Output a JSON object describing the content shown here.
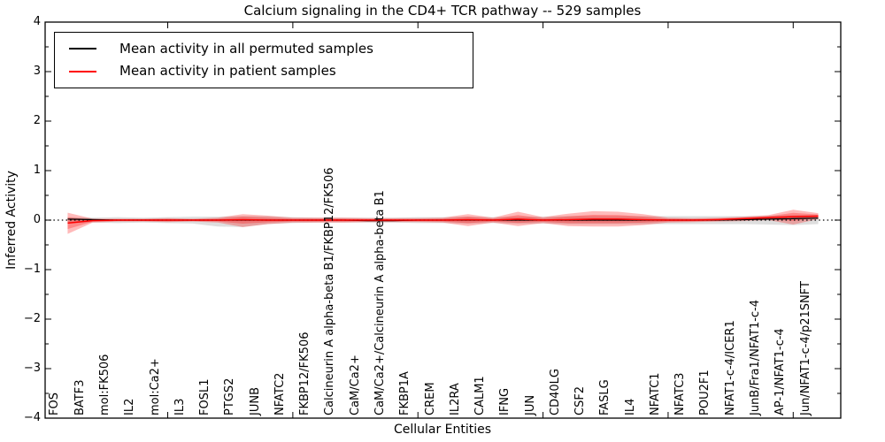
{
  "figure": {
    "title": "Calcium signaling in the CD4+ TCR pathway -- 529 samples",
    "xlabel": "Cellular Entities",
    "ylabel": "Inferred Activity"
  },
  "legend": {
    "position": "upper left",
    "entries": [
      {
        "label": "Mean activity in all permuted samples",
        "color": "#000000"
      },
      {
        "label": "Mean activity in patient samples",
        "color": "#ff0000"
      }
    ]
  },
  "colors": {
    "axis": "#000000",
    "permuted_line": "#000000",
    "patient_line": "#ff0000",
    "permuted_band": "rgba(0,0,0,0.13)",
    "patient_band": "rgba(255,0,0,0.27)",
    "zero_line": "#000000"
  },
  "chart_data": {
    "type": "line",
    "title": "Calcium signaling in the CD4+ TCR pathway -- 529 samples",
    "xlabel": "Cellular Entities",
    "ylabel": "Inferred Activity",
    "ylim": [
      -4,
      4
    ],
    "grid": false,
    "zero_line_style": "dotted",
    "legend_position": "upper left",
    "ytick_values": [
      4,
      3,
      2,
      1,
      0,
      -1,
      -2,
      -3,
      -4
    ],
    "ytick_labels": [
      "4",
      "3",
      "2",
      "1",
      "0",
      "−1",
      "−2",
      "−3",
      "−4"
    ],
    "xtick_values": [
      5,
      10,
      15,
      20,
      25,
      30
    ],
    "categories": [
      "FOS",
      "BATF3",
      "mol:FK506",
      "IL2",
      "mol:Ca2+",
      "IL3",
      "FOSL1",
      "PTGS2",
      "JUNB",
      "NFATC2",
      "FKBP12/FK506",
      "Calcineurin A alpha-beta B1/FKBP12/FK506",
      "CaM/Ca2+",
      "CaM/Ca2+/Calcineurin A alpha-beta B1",
      "FKBP1A",
      "CREM",
      "IL2RA",
      "CALM1",
      "IFNG",
      "JUN",
      "CD40LG",
      "CSF2",
      "FASLG",
      "IL4",
      "NFATC1",
      "NFATC3",
      "POU2F1",
      "NFAT1-c-4/ICER1",
      "JunB/Fra1/NFAT1-c-4",
      "AP-1/NFAT1-c-4",
      "Jun/NFAT1-c-4/p21SNFT"
    ],
    "series": [
      {
        "name": "Mean activity in all permuted samples",
        "color": "#000000",
        "values": [
          0.02,
          0.01,
          0,
          0,
          0,
          0,
          0,
          0,
          0,
          0,
          0,
          0,
          -0.01,
          -0.01,
          0,
          0,
          0,
          0,
          0,
          0,
          0,
          0,
          0,
          0,
          0,
          0,
          0,
          0.01,
          0.02,
          0.03,
          0.04
        ],
        "band_hi": [
          0.06,
          0.05,
          0.06,
          0.05,
          0.06,
          0.07,
          0.07,
          0.08,
          0.08,
          0.06,
          0.05,
          0.05,
          0.05,
          0.05,
          0.06,
          0.06,
          0.07,
          0.06,
          0.07,
          0.07,
          0.08,
          0.08,
          0.08,
          0.08,
          0.08,
          0.08,
          0.08,
          0.08,
          0.09,
          0.1,
          0.1
        ],
        "band_lo": [
          -0.06,
          -0.05,
          -0.06,
          -0.05,
          -0.06,
          -0.07,
          -0.13,
          -0.14,
          -0.08,
          -0.06,
          -0.05,
          -0.05,
          -0.05,
          -0.05,
          -0.06,
          -0.06,
          -0.07,
          -0.06,
          -0.07,
          -0.07,
          -0.08,
          -0.08,
          -0.08,
          -0.08,
          -0.08,
          -0.08,
          -0.08,
          -0.08,
          -0.09,
          -0.1,
          -0.08
        ]
      },
      {
        "name": "Mean activity in patient samples",
        "color": "#ff0000",
        "values": [
          -0.06,
          -0.01,
          0,
          0,
          0,
          0,
          0,
          0.01,
          0,
          0,
          0,
          0,
          0,
          0,
          0,
          0,
          0.01,
          0,
          0.02,
          0,
          0.01,
          0.02,
          0.02,
          0.01,
          0,
          0,
          0.01,
          0.03,
          0.05,
          0.07,
          0.08
        ],
        "band_hi": [
          0.15,
          0.03,
          0.03,
          0.03,
          0.04,
          0.03,
          0.05,
          0.12,
          0.09,
          0.05,
          0.05,
          0.05,
          0.04,
          0.04,
          0.04,
          0.05,
          0.12,
          0.05,
          0.17,
          0.06,
          0.13,
          0.18,
          0.17,
          0.12,
          0.05,
          0.04,
          0.05,
          0.07,
          0.1,
          0.21,
          0.14
        ],
        "band_lo": [
          -0.28,
          -0.05,
          -0.03,
          -0.03,
          -0.04,
          -0.03,
          -0.05,
          -0.14,
          -0.08,
          -0.05,
          -0.05,
          -0.05,
          -0.04,
          -0.04,
          -0.04,
          -0.05,
          -0.12,
          -0.05,
          -0.12,
          -0.06,
          -0.12,
          -0.13,
          -0.13,
          -0.1,
          -0.05,
          -0.04,
          -0.03,
          -0.02,
          0.0,
          -0.09,
          0.02
        ]
      }
    ]
  }
}
